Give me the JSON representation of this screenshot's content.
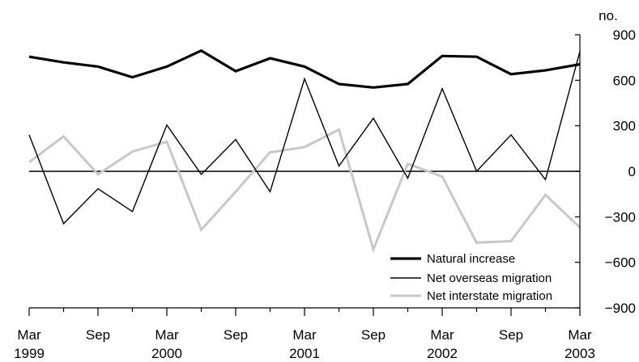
{
  "chart_data": {
    "type": "line",
    "y_unit": "no.",
    "x_labels": [
      "Mar",
      "Sep",
      "Mar",
      "Sep",
      "Mar",
      "Sep",
      "Mar",
      "Sep",
      "Mar"
    ],
    "x_label_years": [
      "1999",
      "",
      "2000",
      "",
      "2001",
      "",
      "2002",
      "",
      "2003"
    ],
    "quarters": [
      "Mar 1999",
      "Jun 1999",
      "Sep 1999",
      "Dec 1999",
      "Mar 2000",
      "Jun 2000",
      "Sep 2000",
      "Dec 2000",
      "Mar 2001",
      "Jun 2001",
      "Sep 2001",
      "Dec 2001",
      "Mar 2002",
      "Jun 2002",
      "Sep 2002",
      "Dec 2002",
      "Mar 2003"
    ],
    "yticks": [
      "900",
      "600",
      "300",
      "0",
      "−300",
      "−600",
      "−900"
    ],
    "ylim": [
      -900,
      900
    ],
    "y_axis_position": "right",
    "legend_position": "bottom-right",
    "series": [
      {
        "name": "Natural increase",
        "color": "#000000",
        "weight": "heavy",
        "values": [
          755,
          718,
          690,
          620,
          690,
          795,
          660,
          745,
          690,
          575,
          552,
          575,
          760,
          755,
          640,
          665,
          705
        ]
      },
      {
        "name": "Net overseas migration",
        "color": "#000000",
        "weight": "thin",
        "values": [
          240,
          -345,
          -115,
          -265,
          305,
          -20,
          210,
          -135,
          610,
          35,
          350,
          -45,
          545,
          0,
          240,
          -55,
          790
        ]
      },
      {
        "name": "Net interstate migration",
        "color": "#c8c8c8",
        "weight": "medium",
        "values": [
          60,
          230,
          -20,
          130,
          195,
          -385,
          -135,
          125,
          160,
          275,
          -515,
          50,
          -35,
          -470,
          -460,
          -155,
          -370
        ]
      }
    ]
  }
}
